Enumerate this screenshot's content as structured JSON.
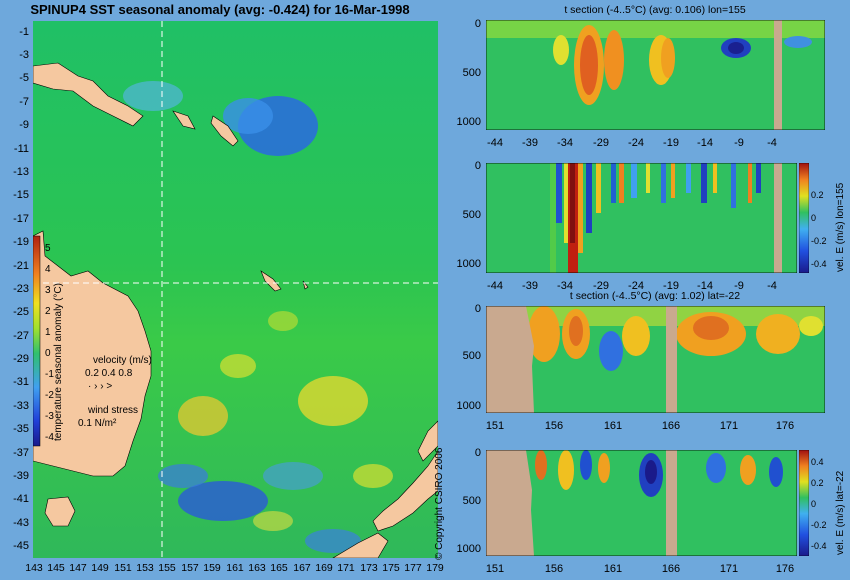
{
  "title": "SPINUP4 SST seasonal anomaly (avg: -0.424) for 16-Mar-1998",
  "map": {
    "lat_ticks": [
      "-1",
      "-3",
      "-5",
      "-7",
      "-9",
      "-11",
      "-13",
      "-15",
      "-17",
      "-19",
      "-21",
      "-23",
      "-25",
      "-27",
      "-29",
      "-31",
      "-33",
      "-35",
      "-37",
      "-39",
      "-41",
      "-43",
      "-45"
    ],
    "lon_ticks": [
      "143",
      "145",
      "147",
      "149",
      "151",
      "153",
      "155",
      "157",
      "159",
      "161",
      "163",
      "165",
      "167",
      "169",
      "171",
      "173",
      "175",
      "177",
      "179"
    ],
    "colorbar_ticks": [
      "5",
      "4",
      "3",
      "2",
      "1",
      "0",
      "-1",
      "-2",
      "-3",
      "-4"
    ],
    "colorbar_label": "temperature seasonal anomaly (°C)",
    "velocity_label": "velocity (m/s)",
    "velocity_scale": "0.2 0.4 0.8",
    "wind_label": "wind stress",
    "wind_scale": "0.1 N/m²",
    "copyright": "© Copyright CSIRO 2006"
  },
  "panels": [
    {
      "title": "t section (-4..5°C) (avg: 0.106) lon=155",
      "y_ticks": [
        "0",
        "500",
        "1000"
      ],
      "x_ticks": [
        "-44",
        "-39",
        "-34",
        "-29",
        "-24",
        "-19",
        "-14",
        "-9",
        "-4"
      ]
    },
    {
      "title": "",
      "y_ticks": [
        "0",
        "500",
        "1000"
      ],
      "x_ticks": [
        "-44",
        "-39",
        "-34",
        "-29",
        "-24",
        "-19",
        "-14",
        "-9",
        "-4"
      ],
      "colorbar_ticks": [
        "0.2",
        "0",
        "-0.2",
        "-0.4"
      ],
      "colorbar_label": "vel. E (m/s) lon=155"
    },
    {
      "title": "t section (-4..5°C) (avg: 1.02) lat=-22",
      "y_ticks": [
        "0",
        "500",
        "1000"
      ],
      "x_ticks": [
        "151",
        "156",
        "161",
        "166",
        "171",
        "176"
      ]
    },
    {
      "title": "",
      "y_ticks": [
        "0",
        "500",
        "1000"
      ],
      "x_ticks": [
        "151",
        "156",
        "161",
        "166",
        "171",
        "176"
      ],
      "colorbar_ticks": [
        "0.4",
        "0.2",
        "0",
        "-0.2",
        "-0.4"
      ],
      "colorbar_label": "vel. E (m/s) lat=-22"
    }
  ],
  "colors": {
    "background": "#6ea8dc",
    "land": "#f5c8a0",
    "bathy": "#c9a98f",
    "ocean_base": "#22c05a"
  }
}
